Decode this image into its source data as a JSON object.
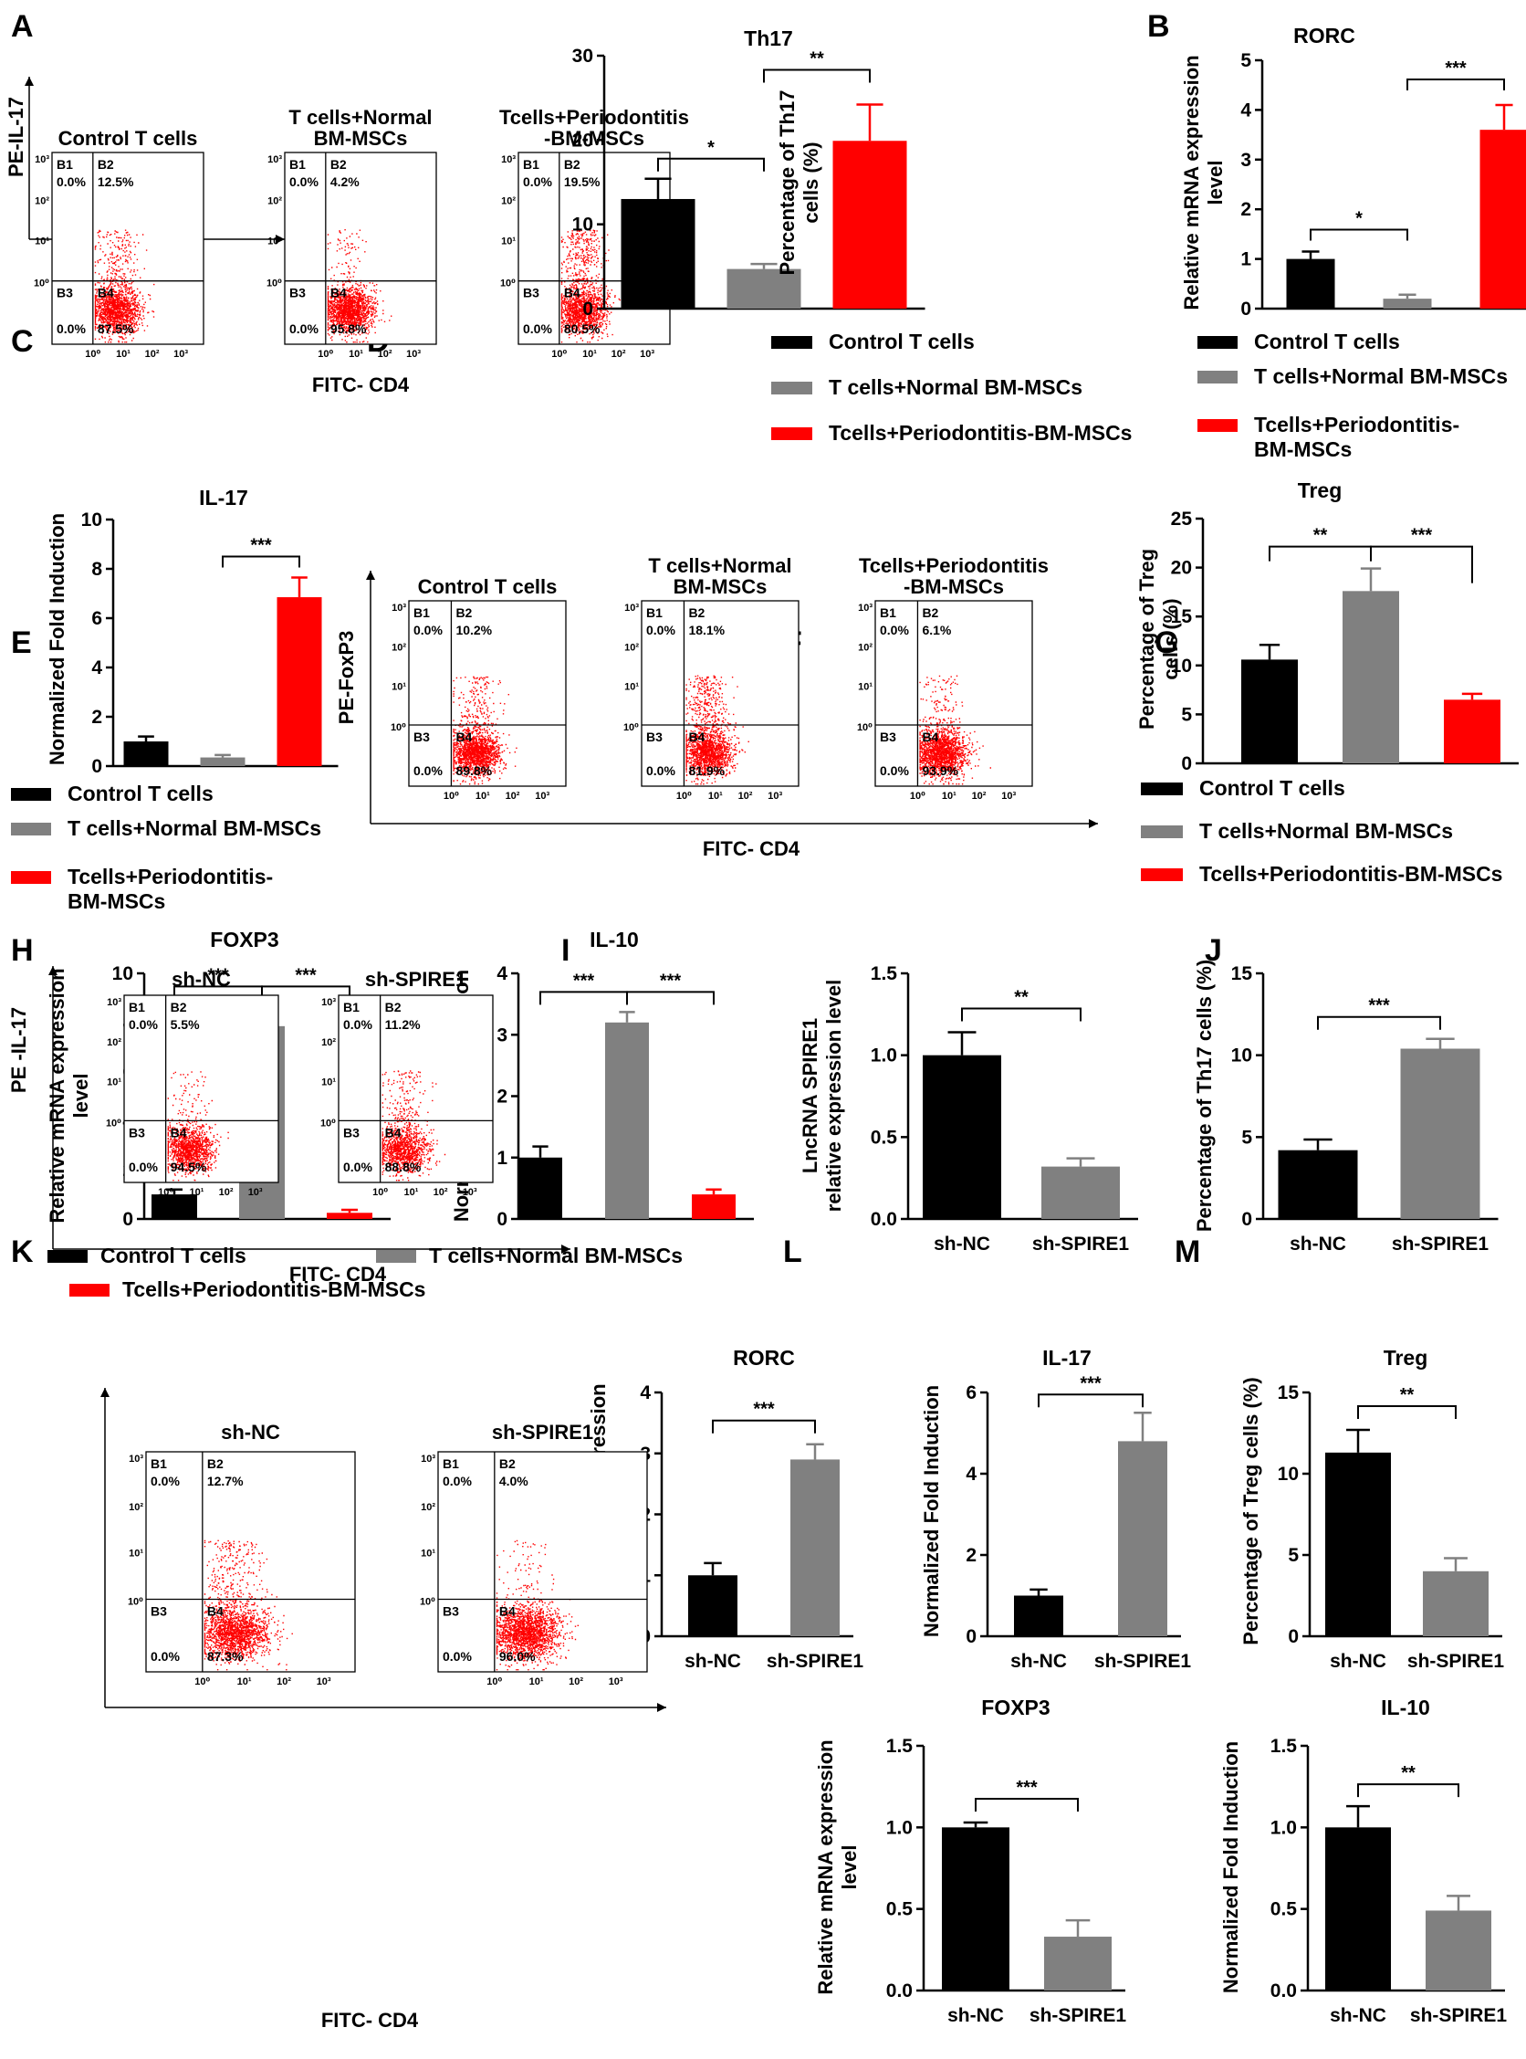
{
  "colors": {
    "black": "#000000",
    "gray": "#808080",
    "red": "#ff0000"
  },
  "legend_labels": {
    "control": "Control T cells",
    "normal": "T cells+Normal BM-MSCs",
    "perio": "Tcells+Periodontitis-BM-MSCs",
    "perio_l1": "Tcells+Periodontitis-",
    "perio_l2": "BM-MSCs"
  },
  "flow_labels": {
    "control": "Control T cells",
    "normal_l1": "T cells+Normal",
    "normal_l2": "BM-MSCs",
    "perio_l1": "Tcells+Periodontitis",
    "perio_l2": "-BM-MSCs",
    "sh_nc": "sh-NC",
    "sh_spire1": "sh-SPIRE1"
  },
  "axis_text": {
    "fitc_cd4": "FITC- CD4",
    "pe_il17": "PE-IL-17",
    "pe_foxp3": "PE-FoxP3",
    "pe_il17_b": "PE -IL-17",
    "pe_foxp3_b": "PE -FoxP3",
    "decade_ticks": [
      "10⁰",
      "10¹",
      "10²",
      "10³"
    ]
  },
  "chart_data": [
    {
      "id": "A_bar",
      "panel": "A",
      "type": "bar",
      "title": "Th17",
      "xlabel": "",
      "ylabel": "Percentage of Th17 cells (%)",
      "ylim": [
        0,
        30
      ],
      "yticks": [
        "0",
        "10",
        "20",
        "30"
      ],
      "categories": [
        "Control T cells",
        "T cells+Normal BM-MSCs",
        "Tcells+Periodontitis-BM-MSCs"
      ],
      "values": [
        13.0,
        4.7,
        19.9
      ],
      "errors": [
        2.4,
        0.6,
        4.3
      ],
      "significance": [
        "*",
        "**"
      ]
    },
    {
      "id": "B_bar",
      "panel": "B",
      "type": "bar",
      "title": "RORC",
      "xlabel": "",
      "ylabel": "Relative mRNA expression level",
      "ylim": [
        0,
        5
      ],
      "yticks": [
        "0",
        "1",
        "2",
        "3",
        "4",
        "5"
      ],
      "categories": [
        "Control T cells",
        "T cells+Normal BM-MSCs",
        "Tcells+Periodontitis-BM-MSCs"
      ],
      "values": [
        1.0,
        0.2,
        3.6
      ],
      "errors": [
        0.15,
        0.08,
        0.5
      ],
      "significance": [
        "*",
        "***"
      ]
    },
    {
      "id": "C_bar",
      "panel": "C",
      "type": "bar",
      "title": "IL-17",
      "xlabel": "",
      "ylabel": "Normalized Fold Induction",
      "ylim": [
        0,
        10
      ],
      "yticks": [
        "0",
        "2",
        "4",
        "6",
        "8",
        "10"
      ],
      "categories": [
        "Control T cells",
        "T cells+Normal BM-MSCs",
        "Tcells+Periodontitis-BM-MSCs"
      ],
      "values": [
        1.0,
        0.35,
        6.85
      ],
      "errors": [
        0.2,
        0.1,
        0.8
      ],
      "significance": [
        "***"
      ]
    },
    {
      "id": "D_bar",
      "panel": "D",
      "type": "bar",
      "title": "Treg",
      "xlabel": "",
      "ylabel": "Percentage of Treg cells (%)",
      "ylim": [
        0,
        25
      ],
      "yticks": [
        "0",
        "5",
        "10",
        "15",
        "20",
        "25"
      ],
      "categories": [
        "Control T cells",
        "T cells+Normal BM-MSCs",
        "Tcells+Periodontitis-BM-MSCs"
      ],
      "values": [
        10.6,
        17.6,
        6.5
      ],
      "errors": [
        1.5,
        2.3,
        0.6
      ],
      "significance": [
        "**",
        "***"
      ]
    },
    {
      "id": "E_foxp3",
      "panel": "E",
      "type": "bar",
      "title": "FOXP3",
      "xlabel": "",
      "ylabel": "Relative mRNA expression level",
      "ylim": [
        0,
        10
      ],
      "yticks": [
        "0",
        "2",
        "4",
        "6",
        "8",
        "10"
      ],
      "categories": [
        "Control T cells",
        "T cells+Normal BM-MSCs",
        "Tcells+Periodontitis-BM-MSCs"
      ],
      "values": [
        1.0,
        7.85,
        0.25
      ],
      "errors": [
        0.2,
        0.8,
        0.12
      ],
      "significance": [
        "***",
        "***"
      ]
    },
    {
      "id": "E_il10",
      "panel": "E",
      "type": "bar",
      "title": "IL-10",
      "xlabel": "",
      "ylabel": "Normalized Fold Induction",
      "ylim": [
        0,
        4
      ],
      "yticks": [
        "0",
        "1",
        "2",
        "3",
        "4"
      ],
      "categories": [
        "Control T cells",
        "T cells+Normal BM-MSCs",
        "Tcells+Periodontitis-BM-MSCs"
      ],
      "values": [
        1.0,
        3.2,
        0.4
      ],
      "errors": [
        0.18,
        0.17,
        0.08
      ],
      "significance": [
        "***",
        "***"
      ]
    },
    {
      "id": "F_bar",
      "panel": "F",
      "type": "bar",
      "title": "",
      "xlabel": "",
      "ylabel": "LncRNA SPIRE1 relative expression level",
      "ylim": [
        0,
        1.5
      ],
      "yticks": [
        "0.0",
        "0.5",
        "1.0",
        "1.5"
      ],
      "categories": [
        "sh-NC",
        "sh-SPIRE1"
      ],
      "values": [
        1.0,
        0.32
      ],
      "errors": [
        0.14,
        0.05
      ],
      "significance": [
        "**"
      ]
    },
    {
      "id": "G_bar",
      "panel": "G",
      "type": "bar",
      "title": "",
      "xlabel": "",
      "ylabel": "Percentage of Th17 cells (%)",
      "ylim": [
        0,
        15
      ],
      "yticks": [
        "0",
        "5",
        "10",
        "15"
      ],
      "categories": [
        "sh-NC",
        "sh-SPIRE1"
      ],
      "values": [
        4.2,
        10.4
      ],
      "errors": [
        0.65,
        0.6
      ],
      "significance": [
        "***"
      ]
    },
    {
      "id": "I_rorc",
      "panel": "I",
      "type": "bar",
      "title": "RORC",
      "xlabel": "",
      "ylabel": "Relative mRNA expression level",
      "ylim": [
        0,
        4
      ],
      "yticks": [
        "0",
        "1",
        "2",
        "3",
        "4"
      ],
      "categories": [
        "sh-NC",
        "sh-SPIRE1"
      ],
      "values": [
        1.0,
        2.9
      ],
      "errors": [
        0.2,
        0.25
      ],
      "significance": [
        "***"
      ]
    },
    {
      "id": "I_il17",
      "panel": "I",
      "type": "bar",
      "title": "IL-17",
      "xlabel": "",
      "ylabel": "Normalized Fold Induction",
      "ylim": [
        0,
        6
      ],
      "yticks": [
        "0",
        "2",
        "4",
        "6"
      ],
      "categories": [
        "sh-NC",
        "sh-SPIRE1"
      ],
      "values": [
        1.0,
        4.8
      ],
      "errors": [
        0.15,
        0.7
      ],
      "significance": [
        "***"
      ]
    },
    {
      "id": "J_bar",
      "panel": "J",
      "type": "bar",
      "title": "Treg",
      "xlabel": "",
      "ylabel": "Percentage of Treg cells (%)",
      "ylim": [
        0,
        15
      ],
      "yticks": [
        "0",
        "5",
        "10",
        "15"
      ],
      "categories": [
        "sh-NC",
        "sh-SPIRE1"
      ],
      "values": [
        11.3,
        4.0
      ],
      "errors": [
        1.4,
        0.8
      ],
      "significance": [
        "**"
      ]
    },
    {
      "id": "L_bar",
      "panel": "L",
      "type": "bar",
      "title": "FOXP3",
      "xlabel": "",
      "ylabel": "Relative mRNA expression level",
      "ylim": [
        0,
        1.5
      ],
      "yticks": [
        "0.0",
        "0.5",
        "1.0",
        "1.5"
      ],
      "categories": [
        "sh-NC",
        "sh-SPIRE1"
      ],
      "values": [
        1.0,
        0.33
      ],
      "errors": [
        0.03,
        0.1
      ],
      "significance": [
        "***"
      ]
    },
    {
      "id": "M_bar",
      "panel": "M",
      "type": "bar",
      "title": "IL-10",
      "xlabel": "",
      "ylabel": "Normalized Fold Induction",
      "ylim": [
        0,
        1.5
      ],
      "yticks": [
        "0.0",
        "0.5",
        "1.0",
        "1.5"
      ],
      "categories": [
        "sh-NC",
        "sh-SPIRE1"
      ],
      "values": [
        1.0,
        0.49
      ],
      "errors": [
        0.13,
        0.09
      ],
      "significance": [
        "**"
      ]
    },
    {
      "id": "A_flow",
      "panel": "A",
      "type": "scatter",
      "xlabel": "FITC- CD4",
      "ylabel": "PE-IL-17",
      "plots": [
        {
          "name": "Control T cells",
          "quadrants": {
            "B1": "0.0%",
            "B2": "12.5%",
            "B3": "0.0%",
            "B4": "87.5%"
          }
        },
        {
          "name": "T cells+Normal BM-MSCs",
          "quadrants": {
            "B1": "0.0%",
            "B2": "4.2%",
            "B3": "0.0%",
            "B4": "95.8%"
          }
        },
        {
          "name": "Tcells+Periodontitis-BM-MSCs",
          "quadrants": {
            "B1": "0.0%",
            "B2": "19.5%",
            "B3": "0.0%",
            "B4": "80.5%"
          }
        }
      ]
    },
    {
      "id": "D_flow",
      "panel": "D",
      "type": "scatter",
      "xlabel": "FITC- CD4",
      "ylabel": "PE-FoxP3",
      "plots": [
        {
          "name": "Control T cells",
          "quadrants": {
            "B1": "0.0%",
            "B2": "10.2%",
            "B3": "0.0%",
            "B4": "89.8%"
          }
        },
        {
          "name": "T cells+Normal BM-MSCs",
          "quadrants": {
            "B1": "0.0%",
            "B2": "18.1%",
            "B3": "0.0%",
            "B4": "81.9%"
          }
        },
        {
          "name": "Tcells+Periodontitis-BM-MSCs",
          "quadrants": {
            "B1": "0.0%",
            "B2": "6.1%",
            "B3": "0.0%",
            "B4": "93.9%"
          }
        }
      ]
    },
    {
      "id": "H_flow",
      "panel": "H",
      "type": "scatter",
      "xlabel": "FITC- CD4",
      "ylabel": "PE -IL-17",
      "plots": [
        {
          "name": "sh-NC",
          "quadrants": {
            "B1": "0.0%",
            "B2": "5.5%",
            "B3": "0.0%",
            "B4": "94.5%"
          }
        },
        {
          "name": "sh-SPIRE1",
          "quadrants": {
            "B1": "0.0%",
            "B2": "11.2%",
            "B3": "0.0%",
            "B4": "88.8%"
          }
        }
      ]
    },
    {
      "id": "K_flow",
      "panel": "K",
      "type": "scatter",
      "xlabel": "FITC- CD4",
      "ylabel": "PE -FoxP3",
      "plots": [
        {
          "name": "sh-NC",
          "quadrants": {
            "B1": "0.0%",
            "B2": "12.7%",
            "B3": "0.0%",
            "B4": "87.3%"
          }
        },
        {
          "name": "sh-SPIRE1",
          "quadrants": {
            "B1": "0.0%",
            "B2": "4.0%",
            "B3": "0.0%",
            "B4": "96.0%"
          }
        }
      ]
    }
  ]
}
